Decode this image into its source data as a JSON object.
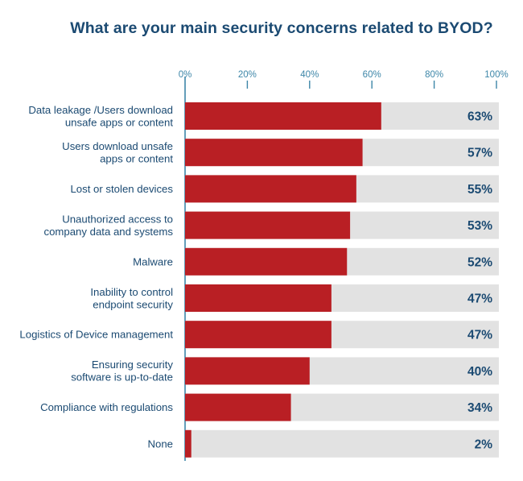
{
  "chart_data": {
    "type": "bar",
    "orientation": "horizontal",
    "title": "What are your main security concerns related to BYOD?",
    "xlabel": "",
    "ylabel": "",
    "xlim": [
      0,
      100
    ],
    "x_ticks": [
      "0%",
      "20%",
      "40%",
      "60%",
      "80%",
      "100%"
    ],
    "x_tick_values": [
      0,
      20,
      40,
      60,
      80,
      100
    ],
    "axis_position": "top",
    "grid": false,
    "legend": "none",
    "categories": [
      [
        "Data leakage /Users download",
        "unsafe apps or content"
      ],
      [
        "Users download unsafe",
        "apps or content"
      ],
      [
        "Lost or stolen devices"
      ],
      [
        "Unauthorized access to",
        "company data and systems"
      ],
      [
        "Malware"
      ],
      [
        "Inability to control",
        "endpoint security"
      ],
      [
        "Logistics of Device management"
      ],
      [
        "Ensuring security",
        "software is up-to-date"
      ],
      [
        "Compliance with regulations"
      ],
      [
        "None"
      ]
    ],
    "values": [
      63,
      57,
      55,
      53,
      52,
      47,
      47,
      40,
      34,
      2
    ],
    "value_labels": [
      "63%",
      "57%",
      "55%",
      "53%",
      "52%",
      "47%",
      "47%",
      "40%",
      "34%",
      "2%"
    ],
    "colors": {
      "bar": "#b91f24",
      "track": "#e2e2e2",
      "text": "#1b4a72",
      "axis": "#3d86a8"
    }
  }
}
